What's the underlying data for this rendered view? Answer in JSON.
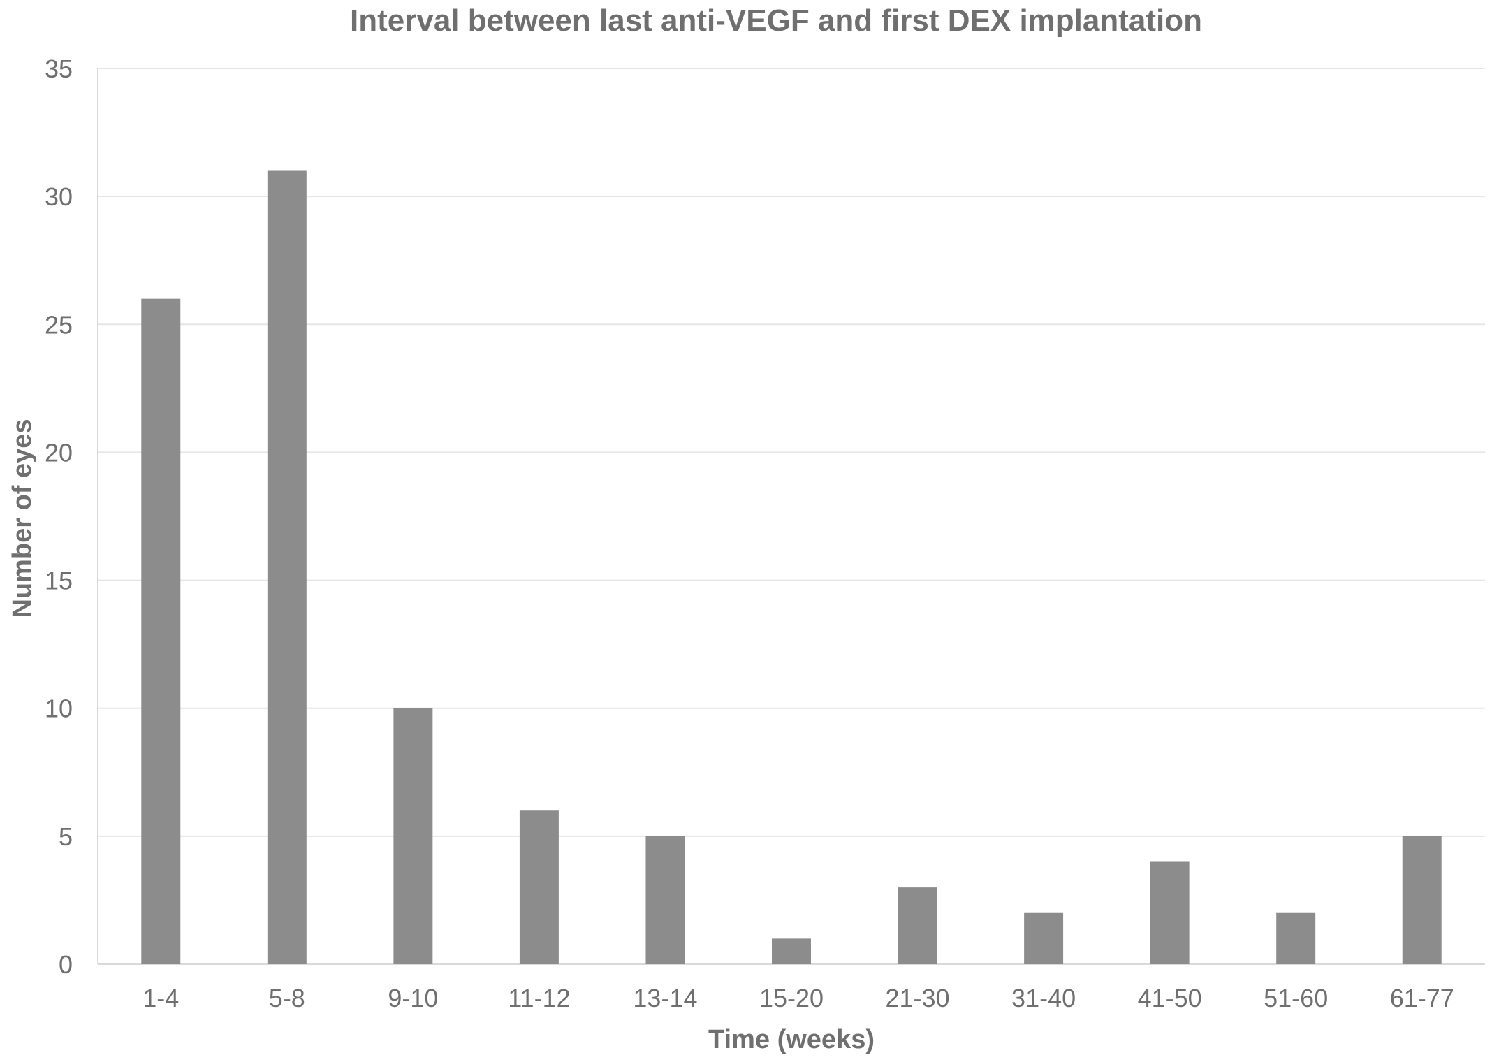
{
  "chart_data": {
    "type": "bar",
    "title": "Interval between last anti-VEGF and first DEX implantation",
    "xlabel": "Time (weeks)",
    "ylabel": "Number of eyes",
    "categories": [
      "1-4",
      "5-8",
      "9-10",
      "11-12",
      "13-14",
      "15-20",
      "21-30",
      "31-40",
      "41-50",
      "51-60",
      "61-77"
    ],
    "values": [
      26,
      31,
      10,
      6,
      5,
      1,
      3,
      2,
      4,
      2,
      5
    ],
    "ylim": [
      0,
      35
    ],
    "yticks": [
      0,
      5,
      10,
      15,
      20,
      25,
      30,
      35
    ],
    "grid": true,
    "legend": "none",
    "bar_color": "#8c8c8c"
  }
}
